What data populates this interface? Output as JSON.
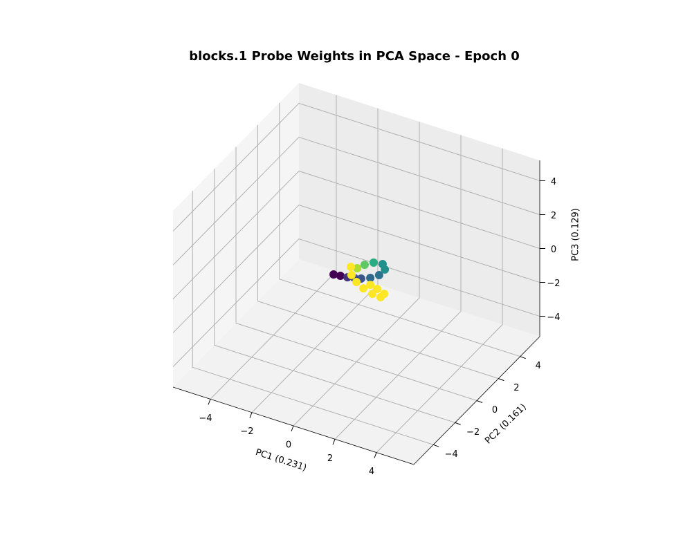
{
  "chart_data": {
    "type": "scatter3d",
    "title": "blocks.1 Probe Weights in PCA Space - Epoch 0",
    "xlabel": "PC1 (0.231)",
    "ylabel": "PC2 (0.161)",
    "zlabel": "PC3 (0.129)",
    "xlim": [
      -5.8,
      5.8
    ],
    "ylim": [
      -5.8,
      5.8
    ],
    "zlim": [
      -5.2,
      5.2
    ],
    "xticks": [
      {
        "value": -4,
        "label": "−4"
      },
      {
        "value": -2,
        "label": "−2"
      },
      0,
      2,
      4
    ],
    "yticks": [
      {
        "value": -4,
        "label": "−4"
      },
      {
        "value": -2,
        "label": "−2"
      },
      0,
      2,
      4
    ],
    "zticks": [
      {
        "value": -4,
        "label": "−4"
      },
      {
        "value": -2,
        "label": "−2"
      },
      0,
      2,
      4
    ],
    "grid": true,
    "series": [
      {
        "x": [
          -0.81,
          -0.51,
          -0.2,
          0.07,
          0.35,
          0.66,
          0.88,
          0.89,
          0.61,
          0.23,
          -0.02,
          -0.17,
          -0.45,
          -0.13,
          0.3,
          0.78,
          1.31,
          1.73,
          1.74,
          1.31,
          0.91
        ],
        "y": [
          -0.55,
          -0.5,
          -0.44,
          -0.33,
          -0.23,
          0.02,
          0.41,
          0.92,
          1.25,
          1.15,
          0.8,
          0.4,
          0.35,
          -0.2,
          -0.57,
          -0.85,
          -1.03,
          -1.08,
          -0.77,
          -0.59,
          -0.46
        ],
        "z": [
          0,
          0,
          0,
          0,
          0,
          0,
          0,
          0,
          0,
          0,
          0,
          0,
          0,
          0,
          0,
          0,
          0,
          0,
          0,
          0,
          0
        ],
        "colors": [
          "#440154",
          "#440154",
          "#46327e",
          "#3b528b",
          "#3b528b",
          "#31688e",
          "#2c728e",
          "#21908d",
          "#21908d",
          "#27ad81",
          "#5ec962",
          "#aadc32",
          "#fde725",
          "#fde725",
          "#fde725",
          "#fde725",
          "#fde725",
          "#fde725",
          "#fde725",
          "#fde725",
          "#fde725"
        ]
      }
    ]
  }
}
